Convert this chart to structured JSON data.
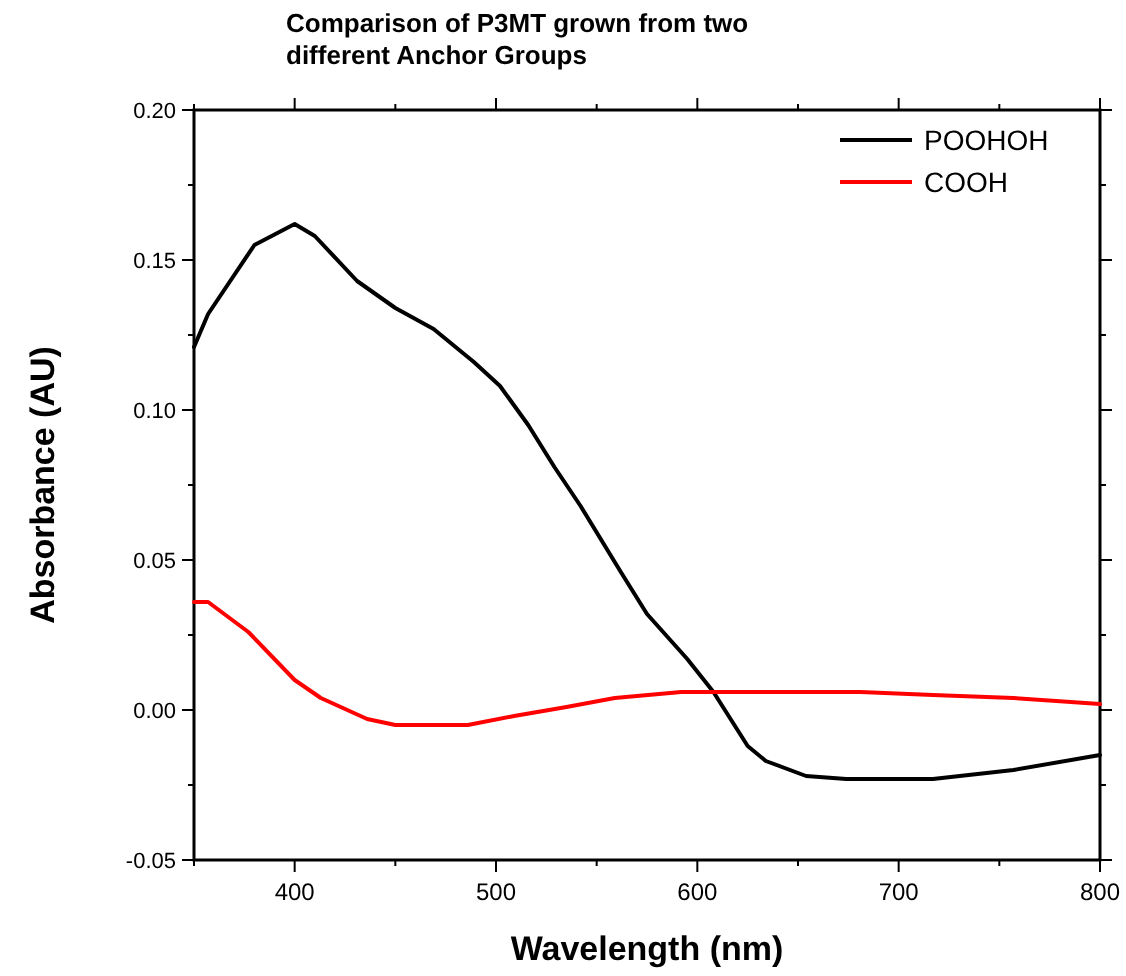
{
  "chart_data": {
    "type": "line",
    "title": "Comparison of P3MT grown from two different Anchor Groups",
    "xlabel": "Wavelength (nm)",
    "ylabel": "Absorbance (AU)",
    "xlim": [
      350,
      800
    ],
    "ylim": [
      -0.05,
      0.2
    ],
    "xticks": [
      {
        "value": 350,
        "label": null
      },
      400,
      {
        "value": 450,
        "label": null
      },
      500,
      {
        "value": 550,
        "label": null
      },
      600,
      {
        "value": 650,
        "label": null
      },
      700,
      {
        "value": 750,
        "label": null
      },
      800
    ],
    "yticks": [
      {
        "value": -0.05,
        "label": "-0.05"
      },
      {
        "value": -0.025,
        "label": null
      },
      {
        "value": 0,
        "label": "0.00"
      },
      {
        "value": 0.025,
        "label": null
      },
      {
        "value": 0.05,
        "label": "0.05"
      },
      {
        "value": 0.075,
        "label": null
      },
      {
        "value": 0.1,
        "label": "0.10"
      },
      {
        "value": 0.125,
        "label": null
      },
      {
        "value": 0.15,
        "label": "0.15"
      },
      {
        "value": 0.175,
        "label": null
      },
      {
        "value": 0.2,
        "label": "0.20"
      }
    ],
    "legend": "top right",
    "grid": false,
    "marker": "none",
    "line_style": "solid",
    "series": [
      {
        "name": "POOHOH",
        "color": "#000000",
        "x": [
          350,
          357,
          380,
          400,
          410,
          431,
          450,
          469,
          489,
          502,
          516,
          529,
          542,
          562,
          575,
          595,
          608,
          625,
          634,
          654,
          674,
          717,
          757,
          800
        ],
        "values": [
          0.121,
          0.132,
          0.155,
          0.162,
          0.158,
          0.143,
          0.134,
          0.127,
          0.116,
          0.108,
          0.095,
          0.081,
          0.068,
          0.046,
          0.032,
          0.017,
          0.006,
          -0.012,
          -0.017,
          -0.022,
          -0.023,
          -0.023,
          -0.02,
          -0.015
        ]
      },
      {
        "name": "COOH",
        "color": "#ff0000",
        "x": [
          350,
          357,
          377,
          400,
          413,
          436,
          450,
          466,
          486,
          509,
          535,
          559,
          592,
          681,
          717,
          757,
          800
        ],
        "values": [
          0.036,
          0.036,
          0.026,
          0.01,
          0.004,
          -0.003,
          -0.005,
          -0.005,
          -0.005,
          -0.002,
          0.001,
          0.004,
          0.006,
          0.006,
          0.005,
          0.004,
          0.002
        ]
      }
    ]
  }
}
